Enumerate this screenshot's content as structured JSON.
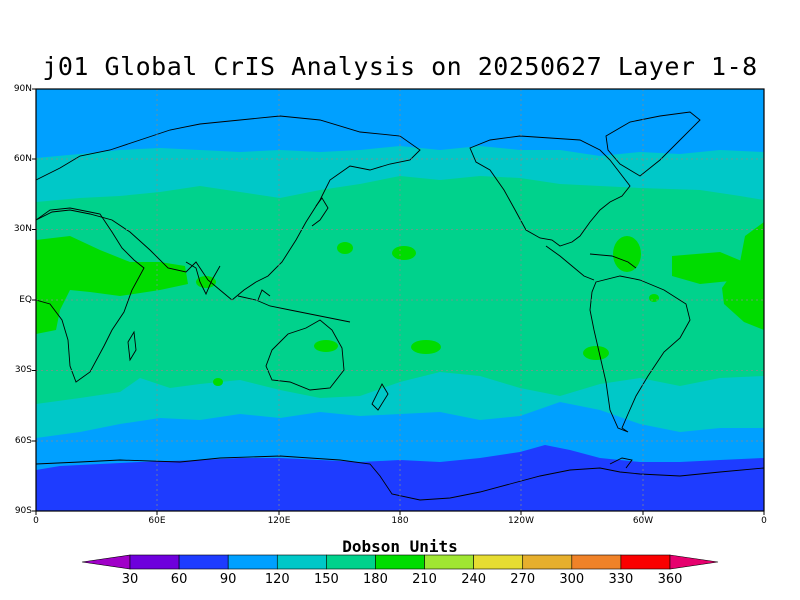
{
  "map": {
    "title": "j01 Global CrIS Analysis on 20250627 Layer 1-8",
    "lat_labels": [
      "90N",
      "60N",
      "30N",
      "EQ",
      "30S",
      "60S",
      "90S"
    ],
    "lon_labels": [
      "0",
      "60E",
      "120E",
      "180",
      "120W",
      "60W",
      "0"
    ]
  },
  "colorbar": {
    "title": "Dobson Units",
    "labels": [
      "30",
      "60",
      "90",
      "120",
      "150",
      "180",
      "210",
      "240",
      "270",
      "300",
      "330",
      "360"
    ],
    "colors": [
      "#a000c8",
      "#6e00dc",
      "#1e3cff",
      "#00a0ff",
      "#00c8c8",
      "#00d28c",
      "#00dc00",
      "#a0e632",
      "#e6dc32",
      "#e6af2d",
      "#f08228",
      "#fa0000",
      "#e6006e"
    ]
  },
  "levels": {
    "band_colors": {
      "ant_high": "#1e3cff",
      "band_90": "#00a0ff",
      "band_120": "#00c8c8",
      "band_150": "#00d28c",
      "band_180": "#00dc00"
    }
  }
}
